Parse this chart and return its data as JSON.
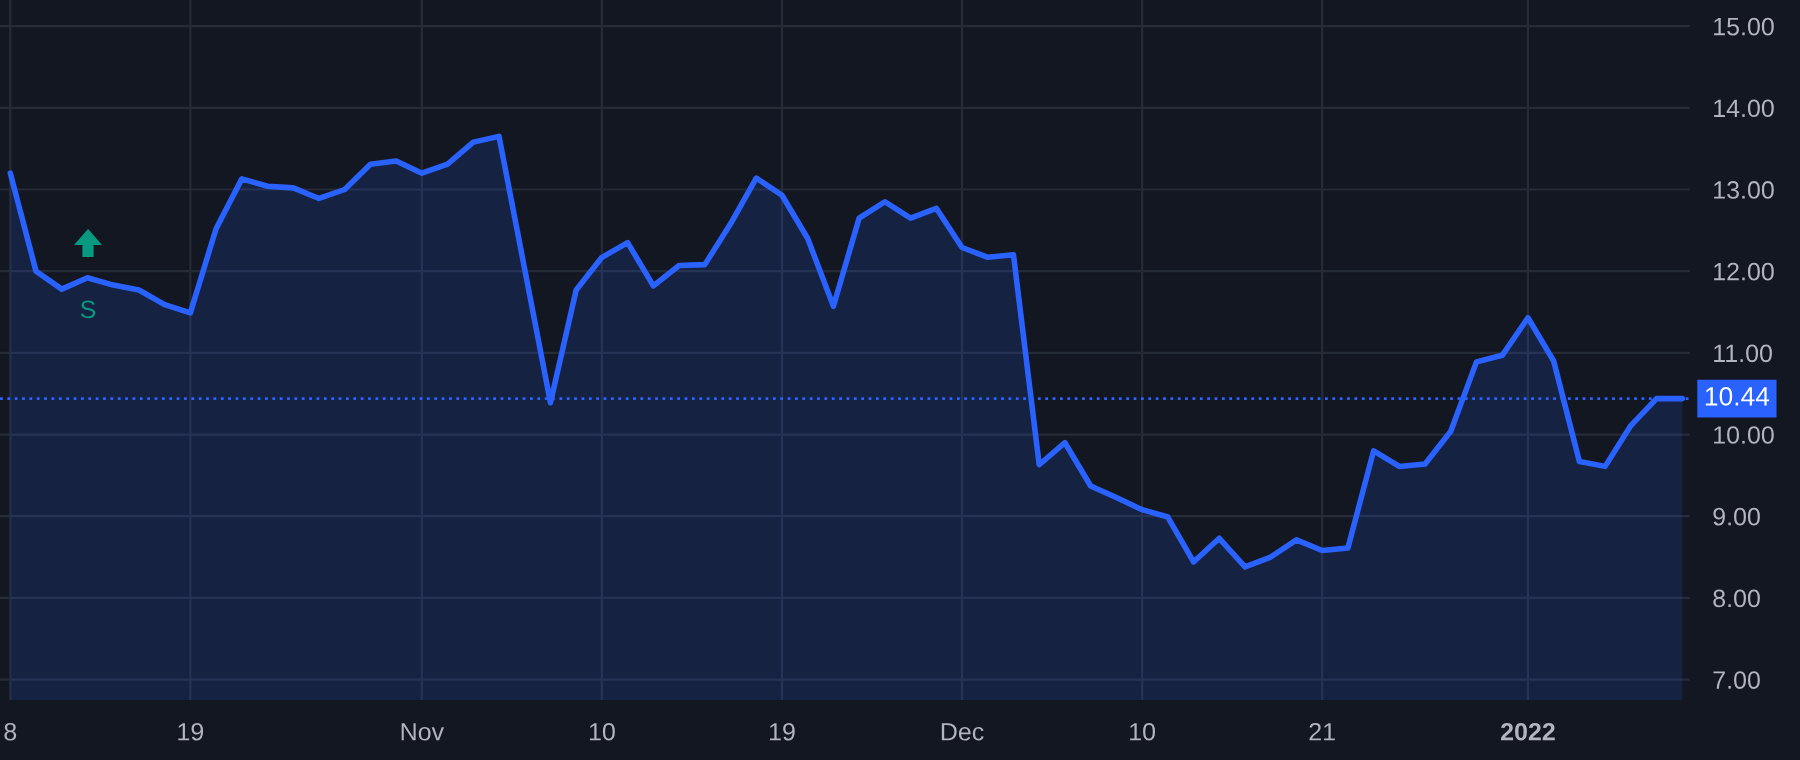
{
  "chart_data": {
    "type": "area",
    "categories": [
      "8",
      null,
      null,
      null,
      null,
      null,
      null,
      "19",
      null,
      null,
      null,
      null,
      null,
      null,
      null,
      null,
      "Nov",
      null,
      null,
      null,
      null,
      null,
      null,
      "10",
      null,
      null,
      null,
      null,
      null,
      null,
      "19",
      null,
      null,
      null,
      null,
      null,
      null,
      "Dec",
      null,
      null,
      null,
      null,
      null,
      null,
      "10",
      null,
      null,
      null,
      null,
      null,
      null,
      "21",
      null,
      null,
      null,
      null,
      null,
      null,
      null,
      "2022",
      null,
      null,
      null,
      null,
      null,
      null
    ],
    "series": [
      {
        "color": "#2962ff",
        "values": [
          13.2,
          12.0,
          11.78,
          11.92,
          11.83,
          11.77,
          11.59,
          11.49,
          12.52,
          13.13,
          13.04,
          13.02,
          12.89,
          13.0,
          13.31,
          13.35,
          13.2,
          13.31,
          13.58,
          13.65,
          12.02,
          10.39,
          11.77,
          12.17,
          12.35,
          11.82,
          12.07,
          12.08,
          12.58,
          13.14,
          12.93,
          12.4,
          11.57,
          12.65,
          12.85,
          12.65,
          12.77,
          12.29,
          12.17,
          12.2,
          9.63,
          9.9,
          9.37,
          9.23,
          9.08,
          8.99,
          8.44,
          8.73,
          8.38,
          8.5,
          8.71,
          8.58,
          8.61,
          9.8,
          9.61,
          9.64,
          10.04,
          10.89,
          10.97,
          11.43,
          10.9,
          9.67,
          9.61,
          10.11,
          10.44,
          10.44
        ]
      }
    ],
    "ylim": [
      6.75,
      15.32
    ],
    "yticks": [
      {
        "value": 7,
        "label": "7.00"
      },
      {
        "value": 8,
        "label": "8.00"
      },
      {
        "value": 9,
        "label": "9.00"
      },
      {
        "value": 10,
        "label": "10.00"
      },
      {
        "value": 11,
        "label": "11.00"
      },
      {
        "value": 12,
        "label": "12.00"
      },
      {
        "value": 13,
        "label": "13.00"
      },
      {
        "value": 14,
        "label": "14.00"
      },
      {
        "value": 15,
        "label": "15.00"
      }
    ],
    "ref_lines": [
      {
        "axis": "y",
        "value": 10.44,
        "label": "10.44",
        "color": "#2962ff",
        "line_style": "dotted"
      }
    ],
    "annotations": [
      "S"
    ],
    "grid": true,
    "line_style": "solid",
    "marker": "none"
  }
}
